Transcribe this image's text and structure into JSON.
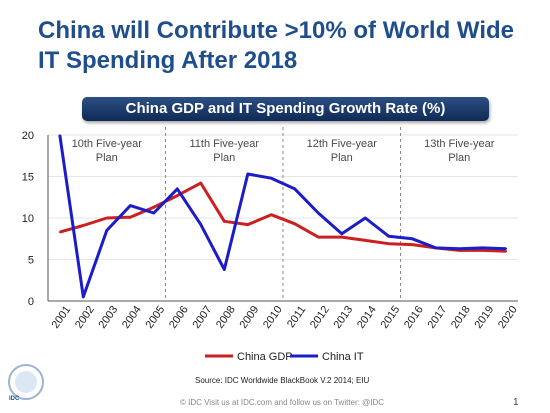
{
  "slide": {
    "title_line1": "China will Contribute >10% of World Wide",
    "title_line2": "IT Spending After 2018",
    "chart_banner": "China  GDP and IT Spending Growth Rate (%)",
    "source": "Source: IDC Worldwide BlackBook V.2 2014; EIU",
    "footer": "© IDC   Visit us at IDC.com and follow us on Twitter: @IDC",
    "page_number": "1",
    "logo_text": "IDC"
  },
  "chart_data": {
    "type": "line",
    "title": "China  GDP and IT Spending Growth Rate (%)",
    "categories": [
      "2001",
      "2002",
      "2003",
      "2004",
      "2005",
      "2006",
      "2007",
      "2008",
      "2009",
      "2010",
      "2011",
      "2012",
      "2013",
      "2014",
      "2015",
      "2016",
      "2017",
      "2018",
      "2019",
      "2020"
    ],
    "ylim": [
      0,
      20
    ],
    "yticks": [
      0,
      5,
      10,
      15,
      20
    ],
    "grid": true,
    "legend_position": "bottom",
    "annotations": [
      {
        "line1": "10th Five-year",
        "line2": "Plan",
        "start": "2001",
        "end": "2005"
      },
      {
        "line1": "11th Five-year",
        "line2": "Plan",
        "start": "2006",
        "end": "2010"
      },
      {
        "line1": "12th Five-year",
        "line2": "Plan",
        "start": "2011",
        "end": "2015"
      },
      {
        "line1": "13th Five-year",
        "line2": "Plan",
        "start": "2016",
        "end": "2020"
      }
    ],
    "series": [
      {
        "name": "China GDP",
        "color": "#cc1f1f",
        "values": [
          8.3,
          9.1,
          10.0,
          10.1,
          11.3,
          12.7,
          14.2,
          9.6,
          9.2,
          10.4,
          9.3,
          7.7,
          7.7,
          7.3,
          6.9,
          6.8,
          6.4,
          6.1,
          6.1,
          6.0
        ]
      },
      {
        "name": "China IT",
        "color": "#1c1cc8",
        "values": [
          20.0,
          0.5,
          8.5,
          11.5,
          10.6,
          13.5,
          9.2,
          3.8,
          15.3,
          14.8,
          13.5,
          10.6,
          8.1,
          10.0,
          7.8,
          7.5,
          6.4,
          6.3,
          6.4,
          6.3
        ]
      }
    ]
  }
}
